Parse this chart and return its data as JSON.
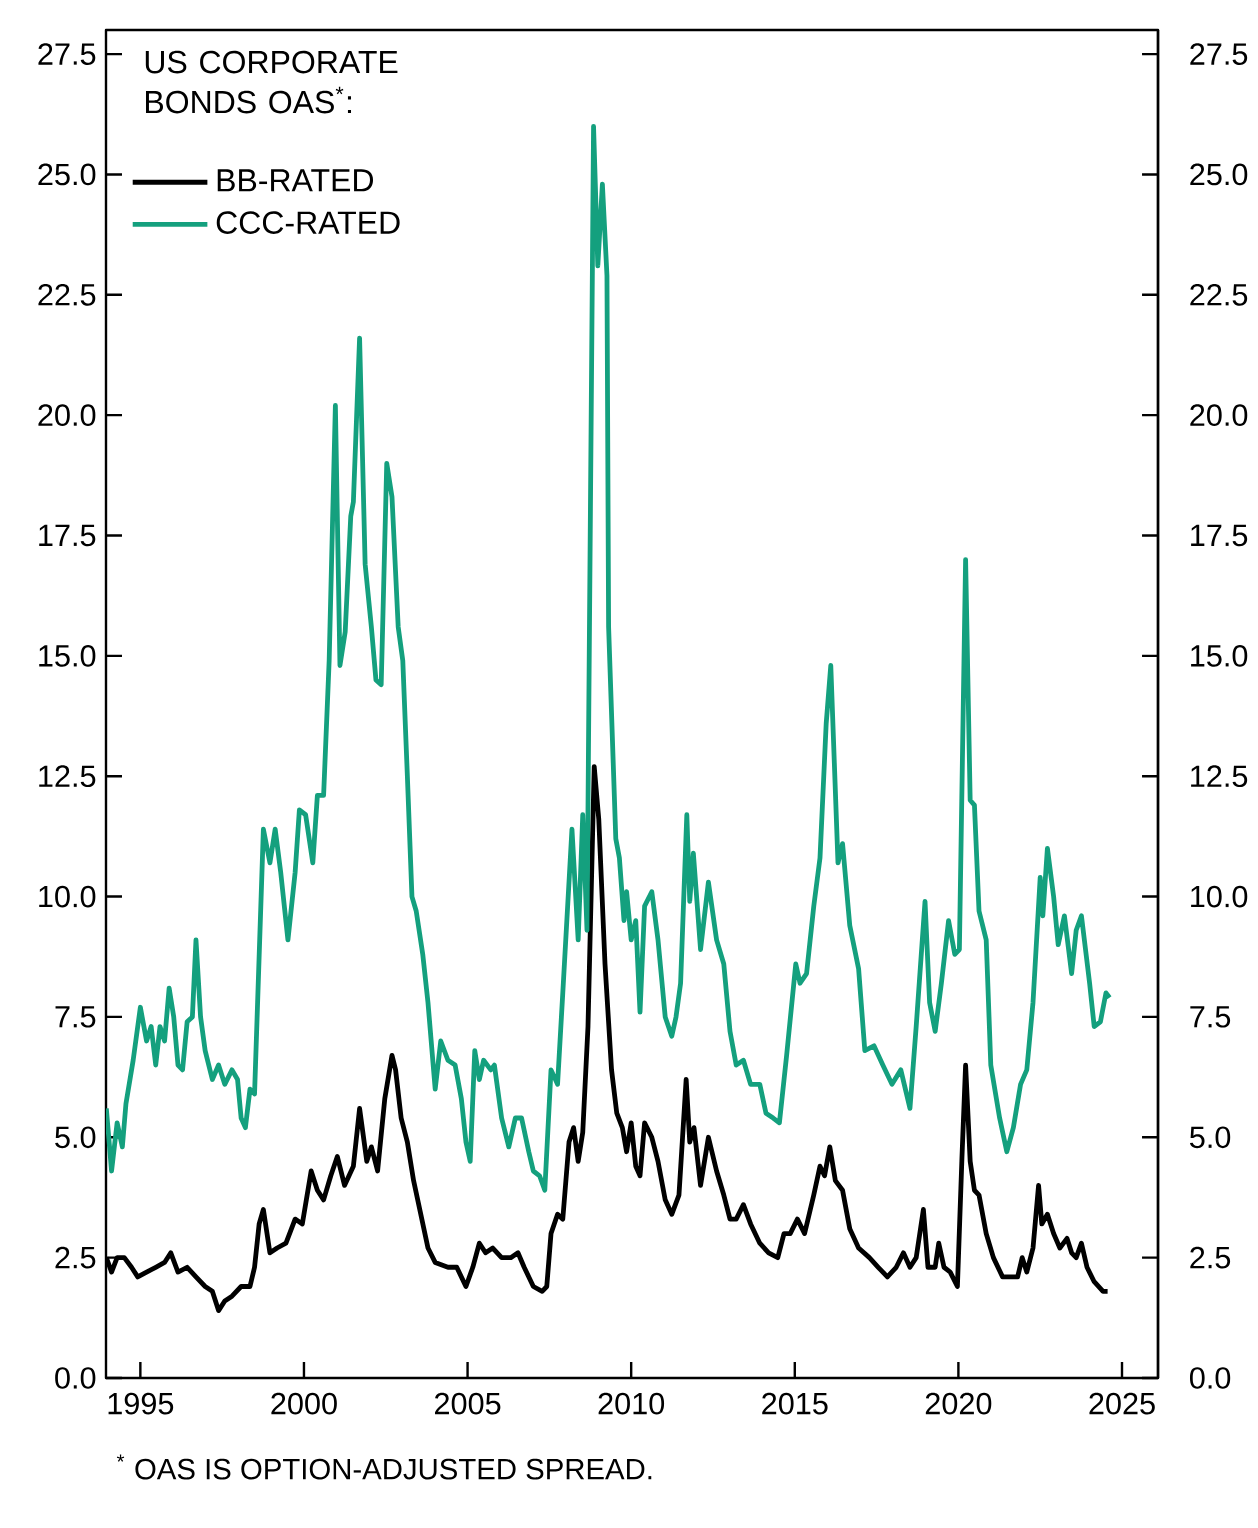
{
  "chart_data": {
    "type": "line",
    "legend_title": "US CORPORATE BONDS OAS$^{*}$:",
    "annotations": [
      "$^{*}$ OAS IS OPTION-ADJUSTED SPREAD."
    ],
    "xlim": [
      1993.95,
      2026.1
    ],
    "xticks": [
      1995,
      2000,
      2005,
      2010,
      2015,
      2020,
      2025
    ],
    "ylim": [
      0,
      28
    ],
    "yticks": [
      {
        "value": 0,
        "label": "0.0"
      },
      2.5,
      {
        "value": 5,
        "label": "5.0"
      },
      7.5,
      {
        "value": 10,
        "label": "10.0"
      },
      12.5,
      {
        "value": 15,
        "label": "15.0"
      },
      17.5,
      {
        "value": 20,
        "label": "20.0"
      },
      22.5,
      {
        "value": 25,
        "label": "25.0"
      },
      27.5
    ],
    "y2lim": [
      0,
      28
    ],
    "y2ticks": [
      {
        "value": 0,
        "label": "0.0"
      },
      2.5,
      {
        "value": 5,
        "label": "5.0"
      },
      7.5,
      {
        "value": 10,
        "label": "10.0"
      },
      12.5,
      {
        "value": 15,
        "label": "15.0"
      },
      17.5,
      {
        "value": 20,
        "label": "20.0"
      },
      22.5,
      {
        "value": 25,
        "label": "25.0"
      },
      27.5
    ],
    "legend": "top left",
    "marker": "none",
    "line_style": "solid",
    "grid": false,
    "series": [
      {
        "name": "BB-RATED",
        "color": "#000000",
        "x": [
          1993.96,
          1994.12,
          1994.29,
          1994.51,
          1994.73,
          1994.92,
          1995.19,
          1995.47,
          1995.74,
          1995.93,
          1996.15,
          1996.43,
          1996.7,
          1996.98,
          1997.2,
          1997.39,
          1997.58,
          1997.8,
          1998.08,
          1998.35,
          1998.49,
          1998.63,
          1998.76,
          1998.96,
          1999.18,
          1999.45,
          1999.73,
          1999.95,
          2000.22,
          2000.41,
          2000.6,
          2000.82,
          2001.02,
          2001.24,
          2001.51,
          2001.7,
          2001.92,
          2002.06,
          2002.25,
          2002.47,
          2002.69,
          2002.8,
          2002.97,
          2003.16,
          2003.35,
          2003.57,
          2003.79,
          2004.01,
          2004.4,
          2004.67,
          2004.95,
          2005.16,
          2005.36,
          2005.55,
          2005.77,
          2006.04,
          2006.32,
          2006.54,
          2006.73,
          2007.01,
          2007.28,
          2007.42,
          2007.55,
          2007.75,
          2007.91,
          2008.1,
          2008.24,
          2008.38,
          2008.52,
          2008.68,
          2008.87,
          2009.01,
          2009.2,
          2009.4,
          2009.56,
          2009.73,
          2009.86,
          2010.0,
          2010.14,
          2010.27,
          2010.41,
          2010.63,
          2010.82,
          2011.04,
          2011.24,
          2011.46,
          2011.68,
          2011.79,
          2011.92,
          2012.12,
          2012.36,
          2012.61,
          2012.83,
          2013.02,
          2013.21,
          2013.43,
          2013.65,
          2013.93,
          2014.2,
          2014.48,
          2014.67,
          2014.86,
          2015.08,
          2015.3,
          2015.58,
          2015.77,
          2015.91,
          2016.07,
          2016.24,
          2016.46,
          2016.68,
          2016.95,
          2017.28,
          2017.55,
          2017.83,
          2018.1,
          2018.32,
          2018.52,
          2018.71,
          2018.93,
          2019.07,
          2019.29,
          2019.4,
          2019.56,
          2019.75,
          2019.97,
          2020.11,
          2020.22,
          2020.36,
          2020.49,
          2020.63,
          2020.85,
          2021.07,
          2021.35,
          2021.62,
          2021.81,
          2021.95,
          2022.09,
          2022.28,
          2022.45,
          2022.55,
          2022.72,
          2022.91,
          2023.1,
          2023.32,
          2023.46,
          2023.6,
          2023.76,
          2023.93,
          2024.15,
          2024.42,
          2024.56
        ],
        "values": [
          2.5,
          2.2,
          2.5,
          2.5,
          2.3,
          2.1,
          2.2,
          2.3,
          2.4,
          2.6,
          2.2,
          2.3,
          2.1,
          1.9,
          1.8,
          1.4,
          1.6,
          1.7,
          1.9,
          1.9,
          2.3,
          3.2,
          3.5,
          2.6,
          2.7,
          2.8,
          3.3,
          3.2,
          4.3,
          3.9,
          3.7,
          4.2,
          4.6,
          4.0,
          4.4,
          5.6,
          4.5,
          4.8,
          4.3,
          5.8,
          6.7,
          6.4,
          5.4,
          4.9,
          4.1,
          3.4,
          2.7,
          2.4,
          2.3,
          2.3,
          1.9,
          2.3,
          2.8,
          2.6,
          2.7,
          2.5,
          2.5,
          2.6,
          2.3,
          1.9,
          1.8,
          1.9,
          3.0,
          3.4,
          3.3,
          4.9,
          5.2,
          4.5,
          5.1,
          7.3,
          12.7,
          11.6,
          8.6,
          6.4,
          5.5,
          5.2,
          4.7,
          5.3,
          4.4,
          4.2,
          5.3,
          5.0,
          4.5,
          3.7,
          3.4,
          3.8,
          6.2,
          4.9,
          5.2,
          4.0,
          5.0,
          4.3,
          3.8,
          3.3,
          3.3,
          3.6,
          3.2,
          2.8,
          2.6,
          2.5,
          3.0,
          3.0,
          3.3,
          3.0,
          3.8,
          4.4,
          4.2,
          4.8,
          4.1,
          3.9,
          3.1,
          2.7,
          2.5,
          2.3,
          2.1,
          2.3,
          2.6,
          2.3,
          2.5,
          3.5,
          2.3,
          2.3,
          2.8,
          2.3,
          2.2,
          1.9,
          4.6,
          6.5,
          4.5,
          3.9,
          3.8,
          3.0,
          2.5,
          2.1,
          2.1,
          2.1,
          2.5,
          2.2,
          2.7,
          4.0,
          3.2,
          3.4,
          3.0,
          2.7,
          2.9,
          2.6,
          2.5,
          2.8,
          2.3,
          2.0,
          1.8,
          1.8
        ]
      },
      {
        "name": "CCC-RATED",
        "color": "#14a07e",
        "x": [
          1993.96,
          1994.12,
          1994.29,
          1994.45,
          1994.56,
          1994.78,
          1995.0,
          1995.19,
          1995.33,
          1995.47,
          1995.6,
          1995.74,
          1995.88,
          1996.02,
          1996.15,
          1996.29,
          1996.43,
          1996.59,
          1996.7,
          1996.84,
          1996.98,
          1997.2,
          1997.39,
          1997.58,
          1997.8,
          1997.97,
          1998.08,
          1998.21,
          1998.35,
          1998.49,
          1998.76,
          1998.96,
          1999.12,
          1999.29,
          1999.51,
          1999.73,
          1999.86,
          2000.05,
          2000.27,
          2000.41,
          2000.6,
          2000.77,
          2000.96,
          2001.1,
          2001.26,
          2001.43,
          2001.51,
          2001.7,
          2001.87,
          2002.06,
          2002.2,
          2002.36,
          2002.53,
          2002.69,
          2002.88,
          2003.02,
          2003.16,
          2003.3,
          2003.43,
          2003.63,
          2003.79,
          2004.01,
          2004.18,
          2004.4,
          2004.62,
          2004.81,
          2004.95,
          2005.08,
          2005.22,
          2005.36,
          2005.49,
          2005.71,
          2005.82,
          2006.04,
          2006.26,
          2006.46,
          2006.65,
          2006.87,
          2007.01,
          2007.2,
          2007.36,
          2007.55,
          2007.75,
          2007.91,
          2008.19,
          2008.38,
          2008.52,
          2008.65,
          2008.85,
          2008.98,
          2009.12,
          2009.26,
          2009.31,
          2009.53,
          2009.64,
          2009.78,
          2009.86,
          2010.0,
          2010.14,
          2010.27,
          2010.41,
          2010.63,
          2010.82,
          2011.04,
          2011.24,
          2011.37,
          2011.51,
          2011.7,
          2011.79,
          2011.9,
          2012.12,
          2012.36,
          2012.61,
          2012.83,
          2013.02,
          2013.21,
          2013.43,
          2013.65,
          2013.93,
          2014.12,
          2014.34,
          2014.53,
          2014.75,
          2015.03,
          2015.16,
          2015.36,
          2015.58,
          2015.77,
          2015.96,
          2016.1,
          2016.32,
          2016.46,
          2016.68,
          2016.95,
          2017.14,
          2017.42,
          2017.69,
          2017.97,
          2018.24,
          2018.52,
          2018.71,
          2018.98,
          2019.12,
          2019.29,
          2019.48,
          2019.7,
          2019.89,
          2020.03,
          2020.22,
          2020.36,
          2020.49,
          2020.63,
          2020.85,
          2020.99,
          2021.26,
          2021.48,
          2021.68,
          2021.9,
          2022.09,
          2022.28,
          2022.5,
          2022.58,
          2022.72,
          2022.91,
          2023.05,
          2023.24,
          2023.46,
          2023.6,
          2023.76,
          2024.01,
          2024.15,
          2024.34,
          2024.51,
          2024.62
        ],
        "values": [
          5.6,
          4.3,
          5.3,
          4.8,
          5.7,
          6.6,
          7.7,
          7.0,
          7.3,
          6.5,
          7.3,
          7.0,
          8.1,
          7.5,
          6.5,
          6.4,
          7.4,
          7.5,
          9.1,
          7.5,
          6.8,
          6.2,
          6.5,
          6.1,
          6.4,
          6.2,
          5.4,
          5.2,
          6.0,
          5.9,
          11.4,
          10.7,
          11.4,
          10.5,
          9.1,
          10.5,
          11.8,
          11.7,
          10.7,
          12.1,
          12.1,
          14.9,
          20.2,
          14.8,
          15.5,
          17.9,
          18.2,
          21.6,
          16.9,
          15.6,
          14.5,
          14.4,
          19.0,
          18.3,
          15.6,
          14.9,
          12.5,
          10.0,
          9.7,
          8.8,
          7.8,
          6.0,
          7.0,
          6.6,
          6.5,
          5.8,
          4.9,
          4.5,
          6.8,
          6.2,
          6.6,
          6.4,
          6.5,
          5.4,
          4.8,
          5.4,
          5.4,
          4.7,
          4.3,
          4.2,
          3.9,
          6.4,
          6.1,
          8.0,
          11.4,
          9.1,
          11.7,
          9.3,
          26.0,
          23.1,
          24.8,
          22.9,
          15.6,
          11.2,
          10.8,
          9.5,
          10.1,
          9.1,
          9.5,
          7.6,
          9.8,
          10.1,
          9.1,
          7.5,
          7.1,
          7.5,
          8.2,
          11.7,
          9.9,
          10.9,
          8.9,
          10.3,
          9.1,
          8.6,
          7.2,
          6.5,
          6.6,
          6.1,
          6.1,
          5.5,
          5.4,
          5.3,
          6.7,
          8.6,
          8.2,
          8.4,
          9.8,
          10.8,
          13.6,
          14.8,
          10.7,
          11.1,
          9.4,
          8.5,
          6.8,
          6.9,
          6.5,
          6.1,
          6.4,
          5.6,
          7.3,
          9.9,
          7.8,
          7.2,
          8.2,
          9.5,
          8.8,
          8.9,
          17.0,
          12.0,
          11.9,
          9.7,
          9.1,
          6.5,
          5.4,
          4.7,
          5.2,
          6.1,
          6.4,
          7.8,
          10.4,
          9.6,
          11.0,
          10.0,
          9.0,
          9.6,
          8.4,
          9.3,
          9.6,
          8.2,
          7.3,
          7.4,
          8.0,
          7.9
        ]
      }
    ]
  }
}
